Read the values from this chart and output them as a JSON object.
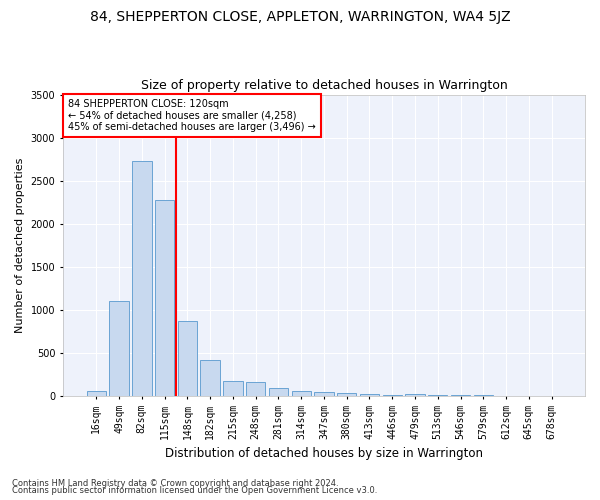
{
  "title": "84, SHEPPERTON CLOSE, APPLETON, WARRINGTON, WA4 5JZ",
  "subtitle": "Size of property relative to detached houses in Warrington",
  "xlabel": "Distribution of detached houses by size in Warrington",
  "ylabel": "Number of detached properties",
  "bar_labels": [
    "16sqm",
    "49sqm",
    "82sqm",
    "115sqm",
    "148sqm",
    "182sqm",
    "215sqm",
    "248sqm",
    "281sqm",
    "314sqm",
    "347sqm",
    "380sqm",
    "413sqm",
    "446sqm",
    "479sqm",
    "513sqm",
    "546sqm",
    "579sqm",
    "612sqm",
    "645sqm",
    "678sqm"
  ],
  "bar_values": [
    50,
    1100,
    2730,
    2280,
    870,
    420,
    170,
    160,
    90,
    55,
    45,
    30,
    25,
    10,
    15,
    5,
    5,
    5,
    2,
    2,
    2
  ],
  "bar_color": "#c8d9ef",
  "bar_edge_color": "#6aa3d4",
  "red_line_index": 3.5,
  "annotation_line1": "84 SHEPPERTON CLOSE: 120sqm",
  "annotation_line2": "← 54% of detached houses are smaller (4,258)",
  "annotation_line3": "45% of semi-detached houses are larger (3,496) →",
  "footer1": "Contains HM Land Registry data © Crown copyright and database right 2024.",
  "footer2": "Contains public sector information licensed under the Open Government Licence v3.0.",
  "ylim": [
    0,
    3500
  ],
  "plot_bg_color": "#eef2fb",
  "title_fontsize": 10,
  "subtitle_fontsize": 9,
  "xlabel_fontsize": 8.5,
  "ylabel_fontsize": 8,
  "tick_fontsize": 7,
  "footer_fontsize": 6
}
